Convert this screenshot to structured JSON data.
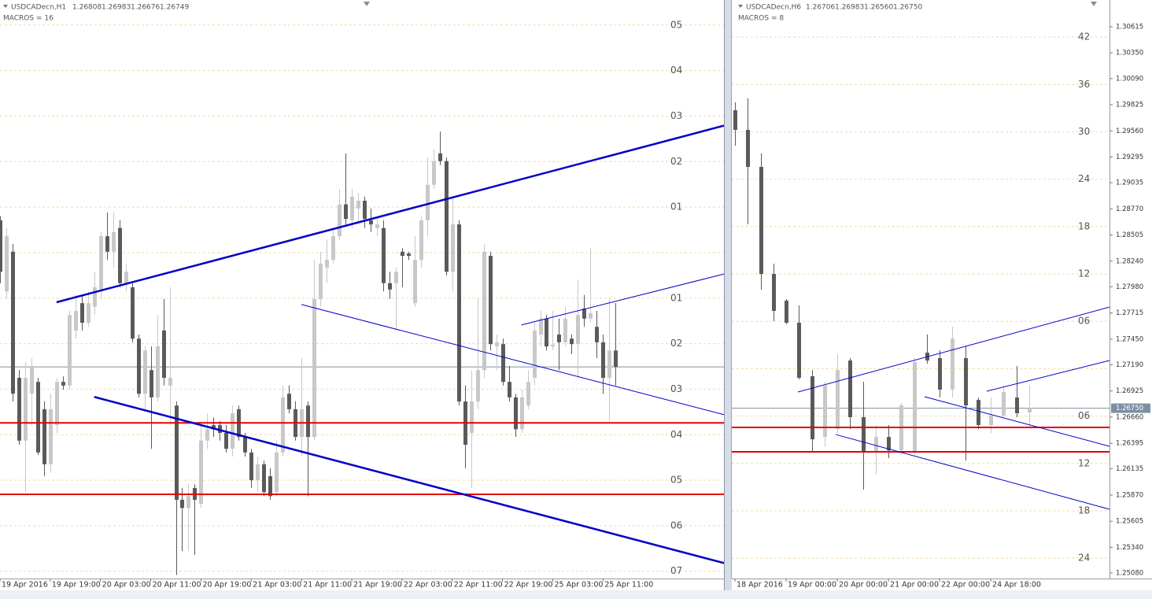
{
  "chart_data": [
    {
      "type": "candlestick",
      "title": "USDCADecn,H1",
      "quote": [
        "1.26808",
        "1.26983",
        "1.26676",
        "1.26749"
      ],
      "subtitle": "MACROS = 16",
      "up_color": "#c8c8c8",
      "down_color": "#5a5a5a",
      "grid": true,
      "xlim": [
        0,
        115.25
      ],
      "ylim": [
        -7.16,
        5.55
      ],
      "xticks": [
        {
          "value": 0,
          "label": "19 Apr 2016"
        },
        {
          "value": 8,
          "label": "19 Apr 19:00"
        },
        {
          "value": 16,
          "label": "20 Apr 03:00"
        },
        {
          "value": 24,
          "label": "20 Apr 11:00"
        },
        {
          "value": 32,
          "label": "20 Apr 19:00"
        },
        {
          "value": 40,
          "label": "21 Apr 03:00"
        },
        {
          "value": 48,
          "label": "21 Apr 11:00"
        },
        {
          "value": 56,
          "label": "21 Apr 19:00"
        },
        {
          "value": 64,
          "label": "22 Apr 03:00"
        },
        {
          "value": 72,
          "label": "22 Apr 11:00"
        },
        {
          "value": 80,
          "label": "22 Apr 19:00"
        },
        {
          "value": 88,
          "label": "25 Apr 03:00"
        },
        {
          "value": 96,
          "label": "25 Apr 11:00"
        }
      ],
      "macro_levels": [
        {
          "value": 5,
          "label": "05"
        },
        {
          "value": 4,
          "label": "04"
        },
        {
          "value": 3,
          "label": "03"
        },
        {
          "value": 2,
          "label": "02"
        },
        {
          "value": 1,
          "label": "01"
        },
        {
          "value": 0,
          "label": null
        },
        {
          "value": -1,
          "label": "01"
        },
        {
          "value": -2,
          "label": "02"
        },
        {
          "value": -3,
          "label": "03"
        },
        {
          "value": -4,
          "label": "04"
        },
        {
          "value": -5,
          "label": "05"
        },
        {
          "value": -6,
          "label": "06"
        },
        {
          "value": -7,
          "label": "07"
        }
      ],
      "last": -2.51,
      "last_color": "#7f8fa3",
      "hlines": [
        -3.74,
        -5.31
      ],
      "hline_color": "#e60000",
      "trend_color": "#0000c8",
      "trendlines": [
        {
          "x": [
            9,
            115.25
          ],
          "values": [
            -1.09,
            2.79
          ],
          "bold": true
        },
        {
          "x": [
            15,
            115.25
          ],
          "values": [
            -3.17,
            -6.82
          ],
          "bold": true
        },
        {
          "x": [
            48,
            115.25
          ],
          "values": [
            -1.14,
            -3.56
          ],
          "bold": false
        },
        {
          "x": [
            83,
            115.25
          ],
          "values": [
            -1.59,
            -0.47
          ],
          "bold": false
        }
      ],
      "ohlc": [
        [
          0.71,
          0.8,
          -0.67,
          -0.42
        ],
        [
          -0.85,
          0.54,
          -1.02,
          0.36
        ],
        [
          0.02,
          0.19,
          -3.27,
          -3.1
        ],
        [
          -2.75,
          -2.58,
          -4.22,
          -4.13
        ],
        [
          -4.13,
          -2.4,
          -5.26,
          -2.75
        ],
        [
          -3.1,
          -2.32,
          -3.79,
          -2.49
        ],
        [
          -2.84,
          -2.75,
          -4.45,
          -4.39
        ],
        [
          -3.44,
          -3.27,
          -4.91,
          -4.65
        ],
        [
          -4.65,
          -3.1,
          -4.83,
          -3.44
        ],
        [
          -3.79,
          -2.75,
          -3.96,
          -2.84
        ],
        [
          -2.84,
          -2.72,
          -3.01,
          -2.92
        ],
        [
          -2.92,
          -1.28,
          -3.01,
          -1.37
        ],
        [
          -1.71,
          -0.93,
          -1.89,
          -1.28
        ],
        [
          -1.11,
          -0.93,
          -1.71,
          -1.54
        ],
        [
          -1.54,
          -0.85,
          -1.63,
          -1.11
        ],
        [
          -1.19,
          -0.42,
          -1.37,
          -0.76
        ],
        [
          -0.85,
          0.45,
          -1.02,
          0.36
        ],
        [
          0.36,
          0.88,
          -0.16,
          0.02
        ],
        [
          0.02,
          0.88,
          -0.33,
          0.45
        ],
        [
          0.54,
          0.71,
          -0.76,
          -0.67
        ],
        [
          -0.67,
          -0.24,
          -0.85,
          -0.42
        ],
        [
          -0.76,
          -0.67,
          -1.97,
          -1.89
        ],
        [
          -1.89,
          -1.8,
          -3.18,
          -3.1
        ],
        [
          -3.1,
          -2.06,
          -3.44,
          -2.15
        ],
        [
          -2.58,
          -2.06,
          -4.31,
          -3.18
        ],
        [
          -3.18,
          -1.37,
          -3.27,
          -2.06
        ],
        [
          -1.71,
          -1.02,
          -2.92,
          -2.75
        ],
        [
          -2.92,
          -0.76,
          -3.79,
          -2.75
        ],
        [
          -3.36,
          -3.27,
          -7.08,
          -5.43
        ],
        [
          -5.43,
          -5.17,
          -6.56,
          -5.61
        ],
        [
          -5.61,
          -5.09,
          -6.56,
          -5.35
        ],
        [
          -5.17,
          -5.09,
          -6.64,
          -5.43
        ],
        [
          -5.52,
          -3.79,
          -5.61,
          -4.13
        ],
        [
          -4.13,
          -3.53,
          -4.31,
          -3.88
        ],
        [
          -3.79,
          -3.62,
          -4.05,
          -3.88
        ],
        [
          -3.79,
          -3.7,
          -4.13,
          -3.96
        ],
        [
          -3.96,
          -3.79,
          -4.39,
          -4.31
        ],
        [
          -4.31,
          -3.36,
          -4.48,
          -3.53
        ],
        [
          -3.44,
          -3.36,
          -4.13,
          -4.05
        ],
        [
          -4.05,
          -3.96,
          -4.48,
          -4.39
        ],
        [
          -4.39,
          -4.31,
          -5.17,
          -5.0
        ],
        [
          -5.0,
          -4.48,
          -5.26,
          -4.65
        ],
        [
          -4.65,
          -4.57,
          -5.35,
          -5.26
        ],
        [
          -4.91,
          -4.74,
          -5.43,
          -5.35
        ],
        [
          -5.26,
          -4.13,
          -5.35,
          -4.39
        ],
        [
          -4.39,
          -2.92,
          -4.48,
          -3.18
        ],
        [
          -3.1,
          -2.92,
          -3.53,
          -3.44
        ],
        [
          -3.44,
          -3.27,
          -4.13,
          -4.05
        ],
        [
          -4.05,
          -2.32,
          -4.48,
          -3.44
        ],
        [
          -3.36,
          -3.27,
          -5.35,
          -4.05
        ],
        [
          -4.05,
          -0.16,
          -4.13,
          -1.02
        ],
        [
          -1.02,
          0.02,
          -1.19,
          -0.24
        ],
        [
          -0.33,
          0.28,
          -0.67,
          -0.16
        ],
        [
          -0.16,
          0.54,
          -0.24,
          0.36
        ],
        [
          0.36,
          1.4,
          0.28,
          1.06
        ],
        [
          1.06,
          2.18,
          0.62,
          0.74
        ],
        [
          0.71,
          1.4,
          0.54,
          1.23
        ],
        [
          0.97,
          1.31,
          0.62,
          1.14
        ],
        [
          1.14,
          1.23,
          0.54,
          0.74
        ],
        [
          0.71,
          0.97,
          0.45,
          0.62
        ],
        [
          0.54,
          0.8,
          0.36,
          0.62
        ],
        [
          0.54,
          0.71,
          -0.85,
          -0.67
        ],
        [
          -0.67,
          -0.42,
          -1.02,
          -0.81
        ],
        [
          -0.67,
          -0.33,
          -1.71,
          -0.42
        ],
        [
          0.02,
          0.1,
          -0.76,
          -0.07
        ],
        [
          -0.02,
          0.02,
          -0.16,
          -0.07
        ],
        [
          -1.11,
          0.36,
          -1.19,
          -0.16
        ],
        [
          -0.16,
          0.8,
          -0.33,
          0.71
        ],
        [
          0.71,
          2.09,
          0.36,
          1.49
        ],
        [
          1.49,
          2.27,
          1.4,
          2.01
        ],
        [
          2.18,
          2.66,
          1.92,
          2.01
        ],
        [
          2.01,
          2.09,
          -0.5,
          -0.42
        ],
        [
          -0.42,
          1.23,
          -0.85,
          0.62
        ],
        [
          0.62,
          0.71,
          -3.36,
          -3.27
        ],
        [
          -3.27,
          -2.92,
          -4.74,
          -4.22
        ],
        [
          -3.96,
          -2.58,
          -5.17,
          -3.27
        ],
        [
          -3.27,
          -1.02,
          -3.44,
          -2.58
        ],
        [
          -2.58,
          0.19,
          -2.75,
          0.02
        ],
        [
          -0.07,
          0.02,
          -2.15,
          -2.01
        ],
        [
          -2.06,
          -1.8,
          -2.58,
          -1.97
        ],
        [
          -2.01,
          -1.89,
          -2.92,
          -2.84
        ],
        [
          -2.84,
          -2.49,
          -3.27,
          -3.18
        ],
        [
          -3.18,
          -3.1,
          -4.05,
          -3.88
        ],
        [
          -3.88,
          -3.01,
          -3.96,
          -3.18
        ],
        [
          -3.36,
          -2.58,
          -3.44,
          -2.84
        ],
        [
          -2.75,
          -1.54,
          -2.92,
          -1.71
        ],
        [
          -1.8,
          -1.28,
          -2.06,
          -1.45
        ],
        [
          -1.45,
          -1.37,
          -2.15,
          -2.06
        ],
        [
          -2.06,
          -1.28,
          -2.15,
          -2.02
        ],
        [
          -1.8,
          -1.45,
          -2.58,
          -1.97
        ],
        [
          -1.97,
          -1.19,
          -2.06,
          -1.45
        ],
        [
          -1.89,
          -1.8,
          -2.23,
          -2.01
        ],
        [
          -2.01,
          -0.59,
          -2.75,
          -1.37
        ],
        [
          -1.23,
          -0.93,
          -1.63,
          -1.45
        ],
        [
          -1.45,
          0.1,
          -1.54,
          -1.33
        ],
        [
          -1.63,
          -1.28,
          -2.32,
          -1.97
        ],
        [
          -1.97,
          -1.8,
          -3.1,
          -2.75
        ],
        [
          -2.75,
          -1.02,
          -3.7,
          -2.15
        ],
        [
          -2.15,
          -1.11,
          -2.92,
          -2.51
        ]
      ]
    },
    {
      "type": "candlestick",
      "title": "USDCADecn,H6",
      "quote": [
        "1.26706",
        "1.26983",
        "1.26560",
        "1.26750"
      ],
      "subtitle": "MACROS = 8",
      "up_color": "#c8c8c8",
      "down_color": "#5a5a5a",
      "grid": true,
      "xlim": [
        -0.25,
        29.29
      ],
      "ylim": [
        1.25024,
        1.30886
      ],
      "xticks": [
        {
          "value": 0,
          "label": "18 Apr 2016"
        },
        {
          "value": 4,
          "label": "19 Apr 00:00"
        },
        {
          "value": 8,
          "label": "20 Apr 00:00"
        },
        {
          "value": 12,
          "label": "21 Apr 00:00"
        },
        {
          "value": 16,
          "label": "22 Apr 00:00"
        },
        {
          "value": 20,
          "label": "24 Apr 18:00"
        }
      ],
      "yticks": [
        1.30615,
        {
          "value": 1.3035,
          "label": "1.30350"
        },
        {
          "value": 1.3009,
          "label": "1.30090"
        },
        1.29825,
        {
          "value": 1.2956,
          "label": "1.29560"
        },
        1.29295,
        1.29035,
        {
          "value": 1.2877,
          "label": "1.28770"
        },
        1.28505,
        {
          "value": 1.2824,
          "label": "1.28240"
        },
        {
          "value": 1.2798,
          "label": "1.27980"
        },
        1.27715,
        {
          "value": 1.2745,
          "label": "1.27450"
        },
        {
          "value": 1.2719,
          "label": "1.27190"
        },
        1.26925,
        {
          "value": 1.2666,
          "label": "1.26660"
        },
        1.26395,
        1.26135,
        {
          "value": 1.2587,
          "label": "1.25870"
        },
        1.25605,
        {
          "value": 1.2534,
          "label": "1.25340"
        },
        {
          "value": 1.2508,
          "label": "1.25080"
        }
      ],
      "macro_levels": [
        {
          "value": 1.3051,
          "label": "42"
        },
        {
          "value": 1.3003,
          "label": "36"
        },
        {
          "value": 1.2955,
          "label": "30"
        },
        {
          "value": 1.2907,
          "label": "24"
        },
        {
          "value": 1.2859,
          "label": "18"
        },
        {
          "value": 1.2811,
          "label": "12"
        },
        {
          "value": 1.2763,
          "label": "06"
        },
        {
          "value": 1.2715,
          "label": null
        },
        {
          "value": 1.2667,
          "label": "06"
        },
        {
          "value": 1.2619,
          "label": "12"
        },
        {
          "value": 1.2571,
          "label": "18"
        },
        {
          "value": 1.2523,
          "label": "24"
        }
      ],
      "last": {
        "value": 1.2675,
        "label": "1.26750"
      },
      "last_color": "#7f8fa3",
      "hlines": [
        1.26555,
        1.26308
      ],
      "hline_color": "#e60000",
      "trend_color": "#0000c8",
      "trendlines": [
        {
          "x": [
            4.92,
            29.29
          ],
          "values": [
            1.26914,
            1.27775
          ],
          "bold": false
        },
        {
          "x": [
            7.88,
            29.29
          ],
          "values": [
            1.26483,
            1.25726
          ],
          "bold": false
        },
        {
          "x": [
            14.83,
            29.29
          ],
          "values": [
            1.26866,
            1.26364
          ],
          "bold": false
        },
        {
          "x": [
            19.69,
            29.29
          ],
          "values": [
            1.26922,
            1.27233
          ],
          "bold": false
        }
      ],
      "ohlc": [
        [
          1.29769,
          1.29849,
          1.2941,
          1.2957
        ],
        [
          1.2957,
          1.29889,
          1.28613,
          1.29195
        ],
        [
          1.29195,
          1.29331,
          1.27951,
          1.2811
        ],
        [
          1.2811,
          1.28214,
          1.27632,
          1.27736
        ],
        [
          1.27839,
          1.27855,
          1.276,
          1.27616
        ],
        [
          1.27616,
          1.27791,
          1.27042,
          1.27058
        ],
        [
          1.27074,
          1.27137,
          1.263,
          1.26435
        ],
        [
          1.26459,
          1.27018,
          1.26356,
          1.26978
        ],
        [
          1.26539,
          1.27297,
          1.26499,
          1.27137
        ],
        [
          1.27233,
          1.27257,
          1.26539,
          1.26659
        ],
        [
          1.26659,
          1.27018,
          1.25925,
          1.263
        ],
        [
          1.263,
          1.26579,
          1.26084,
          1.26459
        ],
        [
          1.26459,
          1.26579,
          1.26244,
          1.26323
        ],
        [
          1.26323,
          1.26802,
          1.26275,
          1.26778
        ],
        [
          1.263,
          1.27257,
          1.26275,
          1.27217
        ],
        [
          1.27313,
          1.27496,
          1.27201,
          1.27233
        ],
        [
          1.27257,
          1.27337,
          1.26858,
          1.26938
        ],
        [
          1.26938,
          1.27576,
          1.26858,
          1.27456
        ],
        [
          1.27257,
          1.27377,
          1.2622,
          1.26778
        ],
        [
          1.26834,
          1.26858,
          1.26539,
          1.26579
        ],
        [
          1.26579,
          1.26858,
          1.26499,
          1.26675
        ],
        [
          1.26675,
          1.26978,
          1.26659,
          1.26914
        ],
        [
          1.26858,
          1.27177,
          1.26659,
          1.26699
        ],
        [
          1.26706,
          1.26983,
          1.2656,
          1.2675
        ]
      ]
    }
  ]
}
